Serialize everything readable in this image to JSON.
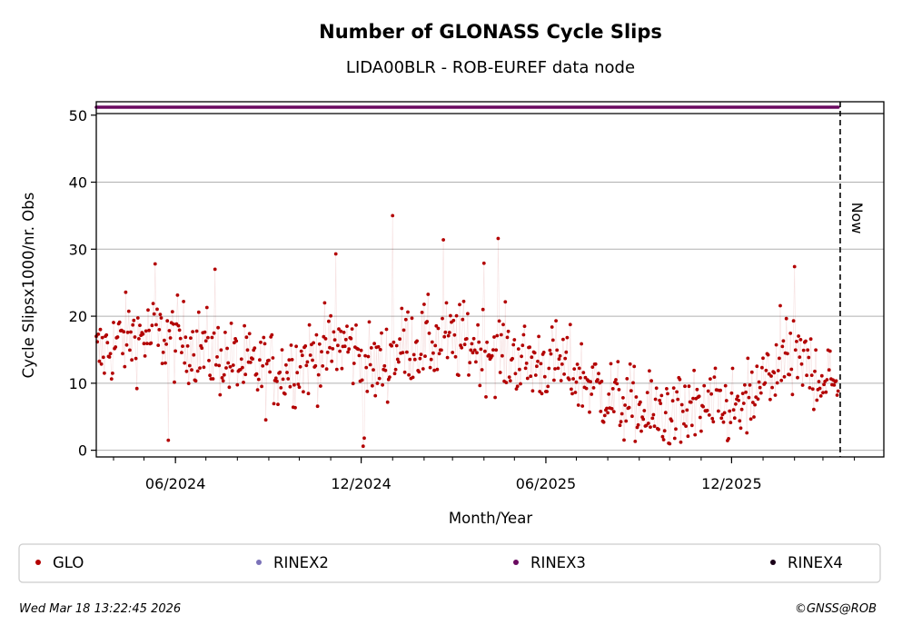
{
  "title": "Number of GLONASS Cycle Slips",
  "subtitle": "LIDA00BLR - ROB-EUREF data node",
  "footer": {
    "timestamp": "Wed Mar 18 13:22:45 2026",
    "copyright": "©GNSS@ROB"
  },
  "colors": {
    "GLO": "#b30000",
    "RINEX2": "#7b72b8",
    "RINEX3": "#6a0a60",
    "RINEX4": "#1a0018",
    "grid": "#b0b0b0"
  },
  "chart_data": {
    "type": "scatter",
    "title": "Number of GLONASS Cycle Slips",
    "xlabel": "Month/Year",
    "ylabel": "Cycle Slipsx1000/nr. Obs",
    "ylim": [
      -1,
      52
    ],
    "xlim": [
      "2024-03-15",
      "2026-04-30"
    ],
    "yticks": [
      0,
      10,
      20,
      30,
      40,
      50
    ],
    "xticks": [
      {
        "date": "2024-06-01",
        "label": "06/2024"
      },
      {
        "date": "2024-12-01",
        "label": "12/2024"
      },
      {
        "date": "2025-06-01",
        "label": "06/2025"
      },
      {
        "date": "2025-12-01",
        "label": "12/2025"
      }
    ],
    "grid": "y",
    "now_line": {
      "date": "2026-03-18",
      "label": "Now"
    },
    "legend": [
      "GLO",
      "RINEX2",
      "RINEX3",
      "RINEX4"
    ],
    "legend_position": "bottom",
    "series": [
      {
        "name": "GLO",
        "style": "scatter-with-faint-line",
        "monthly_mean": [
          {
            "date": "2024-03-15",
            "value": 14
          },
          {
            "date": "2024-04-15",
            "value": 17
          },
          {
            "date": "2024-05-15",
            "value": 17
          },
          {
            "date": "2024-06-15",
            "value": 16
          },
          {
            "date": "2024-07-15",
            "value": 14
          },
          {
            "date": "2024-08-15",
            "value": 12
          },
          {
            "date": "2024-09-15",
            "value": 12
          },
          {
            "date": "2024-10-15",
            "value": 14
          },
          {
            "date": "2024-11-15",
            "value": 16
          },
          {
            "date": "2024-12-15",
            "value": 12
          },
          {
            "date": "2025-01-15",
            "value": 16
          },
          {
            "date": "2025-02-15",
            "value": 16
          },
          {
            "date": "2025-03-15",
            "value": 16
          },
          {
            "date": "2025-04-15",
            "value": 15
          },
          {
            "date": "2025-05-15",
            "value": 13
          },
          {
            "date": "2025-06-15",
            "value": 13
          },
          {
            "date": "2025-07-15",
            "value": 10
          },
          {
            "date": "2025-08-15",
            "value": 7
          },
          {
            "date": "2025-09-15",
            "value": 5
          },
          {
            "date": "2025-10-15",
            "value": 6
          },
          {
            "date": "2025-11-15",
            "value": 6
          },
          {
            "date": "2025-12-15",
            "value": 6
          },
          {
            "date": "2026-01-15",
            "value": 13
          },
          {
            "date": "2026-02-15",
            "value": 13
          },
          {
            "date": "2026-03-15",
            "value": 9
          }
        ],
        "spread": 4,
        "last_date": "2026-03-16",
        "peaks": [
          {
            "date": "2024-05-12",
            "value": 27.8
          },
          {
            "date": "2024-07-10",
            "value": 27.0
          },
          {
            "date": "2024-11-06",
            "value": 29.3
          },
          {
            "date": "2025-01-01",
            "value": 35.0
          },
          {
            "date": "2025-02-20",
            "value": 31.4
          },
          {
            "date": "2025-04-01",
            "value": 27.9
          },
          {
            "date": "2025-04-15",
            "value": 31.6
          },
          {
            "date": "2026-02-01",
            "value": 27.4
          },
          {
            "date": "2024-12-03",
            "value": 0.6
          },
          {
            "date": "2024-12-04",
            "value": 1.8
          },
          {
            "date": "2024-05-25",
            "value": 1.5
          },
          {
            "date": "2025-10-12",
            "value": 1.2
          }
        ]
      },
      {
        "name": "RINEX3",
        "style": "top-strip",
        "value": 51,
        "start": "2024-03-15",
        "end": "2026-03-16"
      }
    ]
  }
}
